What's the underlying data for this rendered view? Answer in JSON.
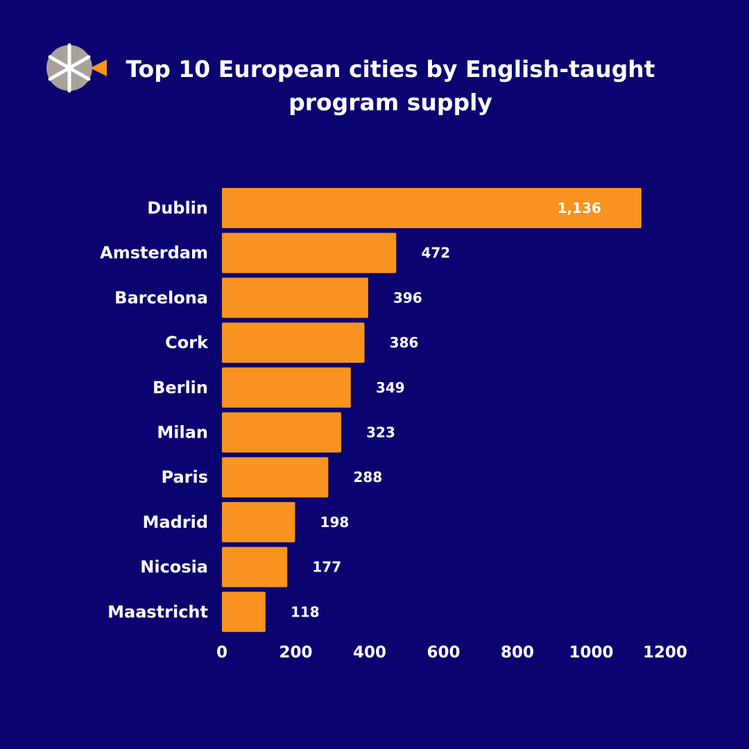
{
  "title": "Top 10 European cities by English-taught program supply",
  "logo": {
    "icon": "asterisk-arrow-logo",
    "colors": {
      "disc": "#a9a29b",
      "slash": "#ffffff",
      "arrow": "#f7941d"
    }
  },
  "colors": {
    "background": "#0b0470",
    "bar": "#f7931e",
    "text": "#ffffff"
  },
  "chart_data": {
    "type": "bar",
    "orientation": "horizontal",
    "title": "Top 10 European cities by English-taught program supply",
    "categories": [
      "Dublin",
      "Amsterdam",
      "Barcelona",
      "Cork",
      "Berlin",
      "Milan",
      "Paris",
      "Madrid",
      "Nicosia",
      "Maastricht"
    ],
    "values": [
      1136,
      472,
      396,
      386,
      349,
      323,
      288,
      198,
      177,
      118
    ],
    "data_labels": [
      "1,136",
      "472",
      "396",
      "386",
      "349",
      "323",
      "288",
      "198",
      "177",
      "118"
    ],
    "xlim": [
      0,
      1200
    ],
    "xticks": [
      0,
      200,
      400,
      600,
      800,
      1000,
      1200
    ],
    "xtick_labels": [
      "0",
      "200",
      "400",
      "600",
      "800",
      "1000",
      "1200"
    ],
    "xlabel": "",
    "ylabel": "",
    "grid": false,
    "legend": "none"
  }
}
